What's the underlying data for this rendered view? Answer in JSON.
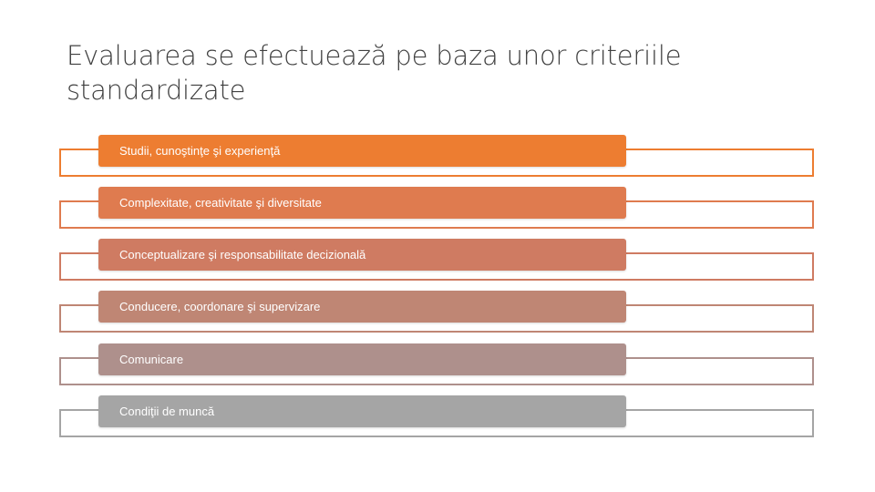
{
  "title": "Evaluarea se efectuează pe baza unor criteriile standardizate",
  "criteria": [
    {
      "label": "Studii, cunoştinţe şi experienţă",
      "color": "#ED7D31",
      "outline": "#ED7D31"
    },
    {
      "label": "Complexitate, creativitate şi diversitate",
      "color": "#DF7B4F",
      "outline": "#DF7B4F"
    },
    {
      "label": "Conceptualizare şi responsabilitate decizională",
      "color": "#CF7B62",
      "outline": "#CF7B62"
    },
    {
      "label": "Conducere, coordonare şi supervizare",
      "color": "#BF8674",
      "outline": "#BF8674"
    },
    {
      "label": "Comunicare",
      "color": "#AE908C",
      "outline": "#AE908C"
    },
    {
      "label": "Condiţii de muncă",
      "color": "#A5A5A5",
      "outline": "#A5A5A5"
    }
  ]
}
